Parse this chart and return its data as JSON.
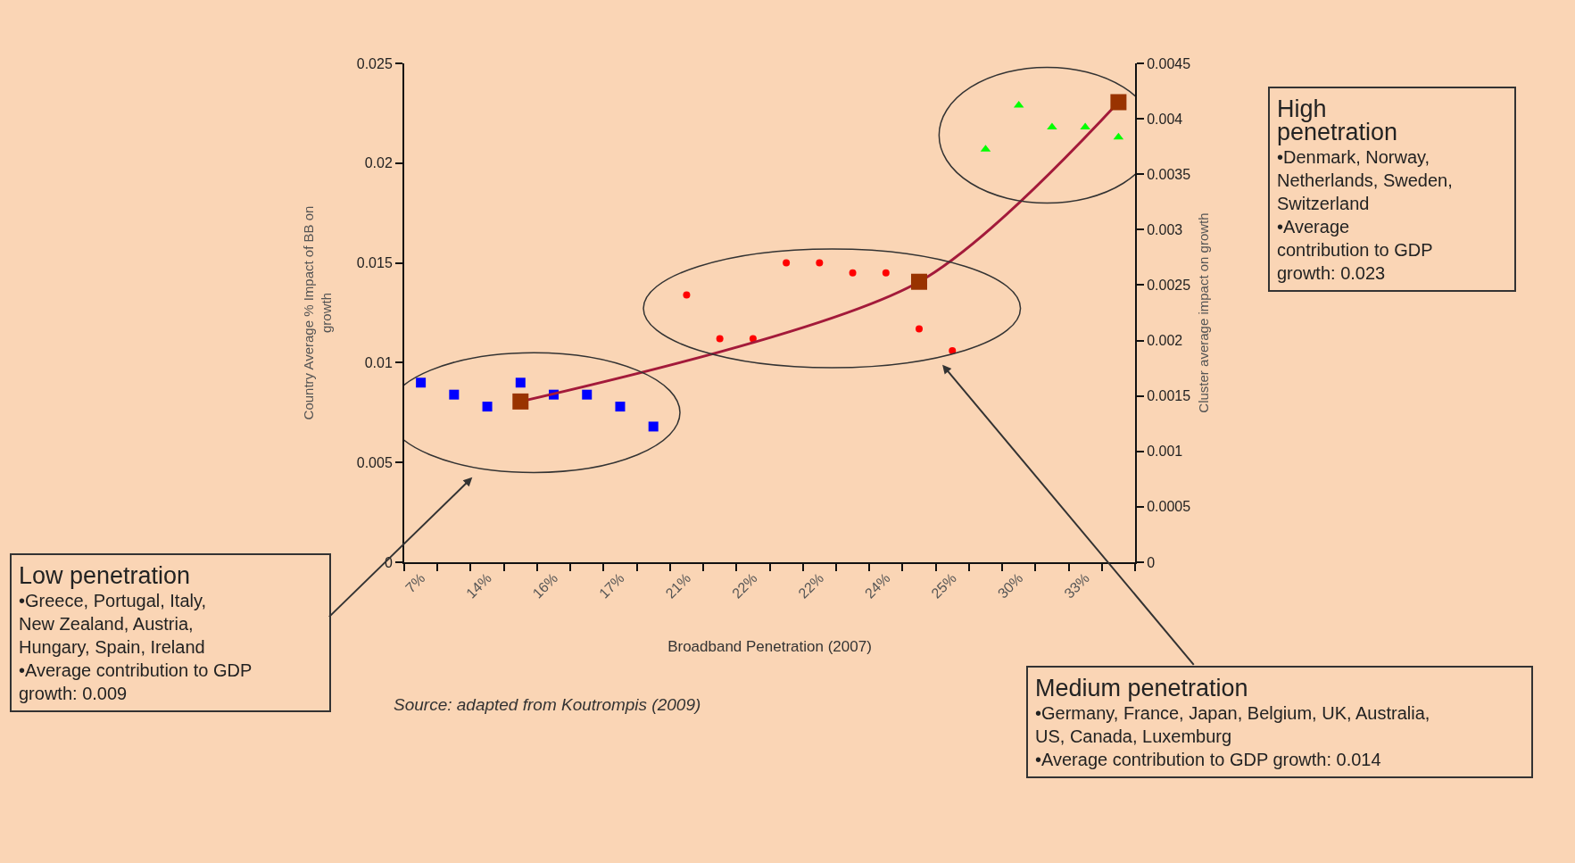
{
  "chart_data": {
    "type": "scatter",
    "xlabel": "Broadband Penetration (2007)",
    "ylabel": "Country Average % Impact of BB on growth",
    "y2label": "Cluster average impact on growth",
    "categories": [
      "7%",
      null,
      "14%",
      null,
      "16%",
      null,
      "17%",
      null,
      "21%",
      null,
      "22%",
      null,
      "22%",
      null,
      "24%",
      null,
      "25%",
      null,
      "30%",
      null,
      "33%",
      null
    ],
    "series": [
      {
        "marker": "square",
        "color": "#0000ff",
        "values": [
          0.009,
          0.0084,
          0.0078,
          0.009,
          0.0084,
          0.0084,
          0.0078,
          0.0068,
          null,
          null,
          null,
          null,
          null,
          null,
          null,
          null,
          null,
          null,
          null,
          null,
          null,
          null
        ]
      },
      {
        "marker": "circle",
        "color": "#ff0000",
        "values": [
          null,
          null,
          null,
          null,
          null,
          null,
          null,
          null,
          0.0134,
          0.0112,
          0.0112,
          0.015,
          0.015,
          0.0145,
          0.0145,
          0.0117,
          0.0106,
          null,
          null,
          null,
          null,
          null
        ]
      },
      {
        "marker": "triangle",
        "color": "#00ff00",
        "values": [
          null,
          null,
          null,
          null,
          null,
          null,
          null,
          null,
          null,
          null,
          null,
          null,
          null,
          null,
          null,
          null,
          null,
          0.0207,
          0.0229,
          0.0218,
          0.0218,
          0.0213
        ]
      },
      {
        "type": "line",
        "marker": "none",
        "axis": "y2",
        "color": "#a31a3a",
        "values": [
          null,
          null,
          null,
          0.00145,
          null,
          null,
          null,
          null,
          null,
          null,
          null,
          null,
          null,
          null,
          null,
          0.00253,
          null,
          null,
          null,
          null,
          null,
          0.00415
        ]
      },
      {
        "type": "scatter",
        "marker": "square",
        "axis": "y2",
        "color": "#993300",
        "values": [
          null,
          null,
          null,
          0.00145,
          null,
          null,
          null,
          null,
          null,
          null,
          null,
          null,
          null,
          null,
          null,
          0.00253,
          null,
          null,
          null,
          null,
          null,
          0.00415
        ]
      }
    ],
    "ylim": [
      0,
      0.025
    ],
    "yticks": [
      0,
      0.005,
      0.01,
      0.015,
      0.02,
      0.025
    ],
    "y2lim": [
      0,
      0.0045
    ],
    "y2ticks": [
      0,
      0.0005,
      0.001,
      0.0015,
      0.002,
      0.0025,
      0.003,
      0.0035,
      0.004,
      0.0045
    ],
    "grid": false,
    "annotations": [
      "Low penetration\n•Greece, Portugal, Italy, New Zealand, Austria, Hungary, Spain, Ireland\n•Average contribution to GDP growth: 0.009",
      "Medium penetration\n•Germany, France, Japan, Belgium, UK, Australia, US, Canada, Luxemburg\n•Average contribution to GDP growth: 0.014",
      "High penetration\n•Denmark, Norway, Netherlands, Sweden, Switzerland\n•Average contribution to GDP growth: 0.023",
      "Source: adapted from Koutrompis (2009)"
    ]
  }
}
